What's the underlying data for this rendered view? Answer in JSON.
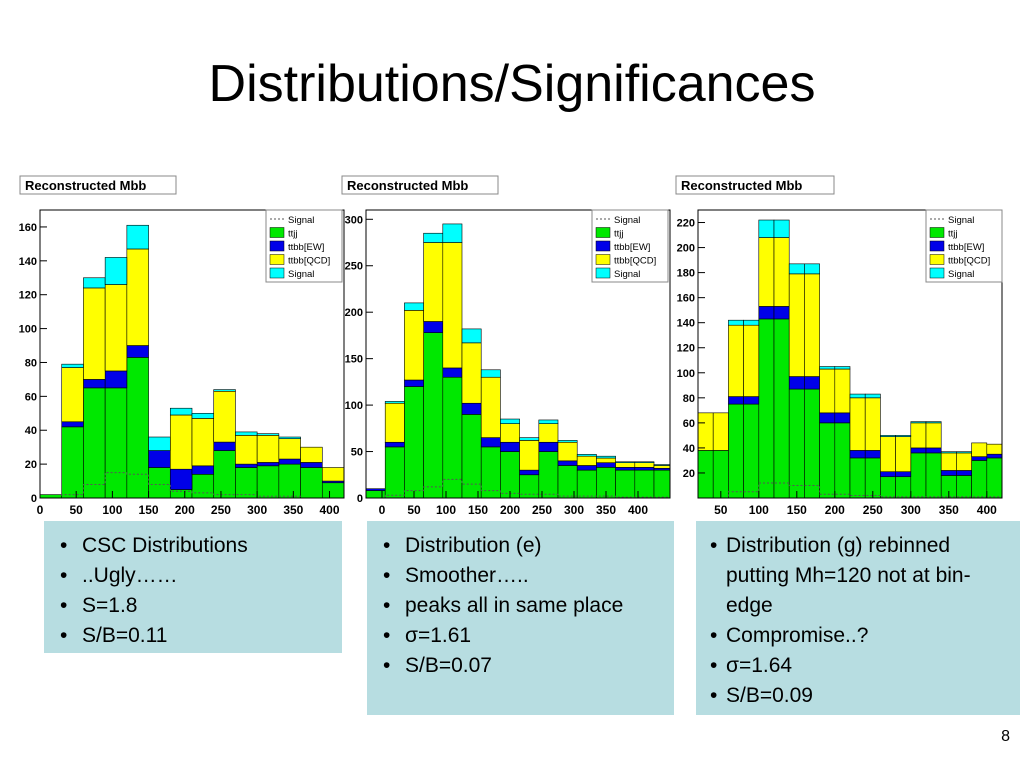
{
  "slide": {
    "title": "Distributions/Significances",
    "page_number": "8"
  },
  "legend_labels": [
    "Signal",
    "ttjj",
    "ttbb[EW]",
    "ttbb[QCD]",
    "Signal"
  ],
  "colors": {
    "ttjj": "#00e800",
    "ttbb_ew": "#0000e8",
    "ttbb_qcd": "#ffff00",
    "signal": "#00ffff",
    "signal_line": "#555555",
    "box": "#b7dde1"
  },
  "chart_data": [
    {
      "type": "bar",
      "stacked": true,
      "title": "Reconstructed Mbb",
      "xlim": [
        0,
        420
      ],
      "ylim": [
        0,
        170
      ],
      "xticks": [
        0,
        50,
        100,
        150,
        200,
        250,
        300,
        350,
        400
      ],
      "yticks": [
        0,
        20,
        40,
        60,
        80,
        100,
        120,
        140,
        160
      ],
      "bins": [
        [
          0,
          30
        ],
        [
          30,
          60
        ],
        [
          60,
          90
        ],
        [
          90,
          120
        ],
        [
          120,
          150
        ],
        [
          150,
          180
        ],
        [
          180,
          210
        ],
        [
          210,
          240
        ],
        [
          240,
          270
        ],
        [
          270,
          300
        ],
        [
          300,
          330
        ],
        [
          330,
          360
        ],
        [
          360,
          390
        ],
        [
          390,
          420
        ]
      ],
      "series": [
        {
          "name": "ttjj",
          "values": [
            2,
            42,
            65,
            65,
            83,
            18,
            5,
            14,
            28,
            18,
            19,
            20,
            18,
            9
          ]
        },
        {
          "name": "ttbb[EW]",
          "values": [
            0,
            3,
            5,
            10,
            7,
            10,
            12,
            5,
            5,
            2,
            2,
            3,
            3,
            1
          ]
        },
        {
          "name": "ttbb[QCD]",
          "values": [
            0,
            32,
            54,
            51,
            57,
            0,
            32,
            28,
            30,
            17,
            16,
            12,
            9,
            8
          ]
        },
        {
          "name": "Signal",
          "values": [
            0,
            2,
            6,
            16,
            14,
            8,
            4,
            3,
            1,
            2,
            1,
            1,
            0,
            0
          ]
        }
      ],
      "signal_line": [
        0,
        2,
        8,
        15,
        14,
        8,
        4,
        3,
        2,
        2,
        1,
        1,
        0,
        0
      ]
    },
    {
      "type": "bar",
      "stacked": true,
      "title": "Reconstructed Mbb",
      "xlim": [
        -25,
        450
      ],
      "ylim": [
        0,
        310
      ],
      "xticks": [
        0,
        50,
        100,
        150,
        200,
        250,
        300,
        350,
        400
      ],
      "yticks": [
        0,
        50,
        100,
        150,
        200,
        250,
        300
      ],
      "bins": [
        [
          -25,
          5
        ],
        [
          5,
          35
        ],
        [
          35,
          65
        ],
        [
          65,
          95
        ],
        [
          95,
          125
        ],
        [
          125,
          155
        ],
        [
          155,
          185
        ],
        [
          185,
          215
        ],
        [
          215,
          245
        ],
        [
          245,
          275
        ],
        [
          275,
          305
        ],
        [
          305,
          335
        ],
        [
          335,
          365
        ],
        [
          365,
          395
        ],
        [
          395,
          425
        ],
        [
          425,
          450
        ]
      ],
      "series": [
        {
          "name": "ttjj",
          "values": [
            8,
            55,
            120,
            178,
            130,
            90,
            55,
            50,
            25,
            50,
            35,
            30,
            33,
            30,
            30,
            30
          ]
        },
        {
          "name": "ttbb[EW]",
          "values": [
            2,
            5,
            7,
            12,
            10,
            12,
            10,
            10,
            5,
            10,
            5,
            5,
            5,
            3,
            3,
            2
          ]
        },
        {
          "name": "ttbb[QCD]",
          "values": [
            0,
            42,
            75,
            85,
            135,
            65,
            65,
            20,
            32,
            20,
            20,
            10,
            5,
            5,
            5,
            3
          ]
        },
        {
          "name": "Signal",
          "values": [
            0,
            2,
            8,
            10,
            20,
            15,
            8,
            5,
            3,
            4,
            2,
            2,
            2,
            1,
            1,
            1
          ]
        }
      ],
      "signal_line": [
        0,
        3,
        8,
        12,
        20,
        15,
        8,
        5,
        4,
        4,
        2,
        2,
        2,
        1,
        1,
        1
      ]
    },
    {
      "type": "bar",
      "stacked": true,
      "title": "Reconstructed Mbb",
      "xlim": [
        20,
        420
      ],
      "ylim": [
        0,
        230
      ],
      "xticks": [
        50,
        100,
        150,
        200,
        250,
        300,
        350,
        400
      ],
      "yticks": [
        20,
        40,
        60,
        80,
        100,
        120,
        140,
        160,
        180,
        200,
        220
      ],
      "bins": [
        [
          20,
          40
        ],
        [
          40,
          60
        ],
        [
          60,
          80
        ],
        [
          80,
          100
        ],
        [
          100,
          120
        ],
        [
          120,
          140
        ],
        [
          140,
          160
        ],
        [
          160,
          180
        ],
        [
          180,
          200
        ],
        [
          200,
          220
        ],
        [
          220,
          240
        ],
        [
          240,
          260
        ],
        [
          260,
          280
        ],
        [
          280,
          300
        ],
        [
          300,
          320
        ],
        [
          320,
          340
        ],
        [
          340,
          360
        ],
        [
          360,
          380
        ],
        [
          380,
          400
        ],
        [
          400,
          420
        ]
      ],
      "series": [
        {
          "name": "ttjj",
          "values": [
            38,
            38,
            75,
            75,
            143,
            143,
            87,
            87,
            60,
            60,
            32,
            32,
            17,
            17,
            36,
            36,
            18,
            18,
            30,
            32
          ]
        },
        {
          "name": "ttbb[EW]",
          "values": [
            0,
            0,
            6,
            6,
            10,
            10,
            10,
            10,
            8,
            8,
            6,
            6,
            4,
            4,
            4,
            4,
            4,
            4,
            3,
            3
          ]
        },
        {
          "name": "ttbb[QCD]",
          "values": [
            30,
            30,
            57,
            57,
            55,
            55,
            82,
            82,
            35,
            35,
            42,
            42,
            28,
            28,
            20,
            20,
            14,
            14,
            11,
            8
          ]
        },
        {
          "name": "Signal",
          "values": [
            0,
            0,
            4,
            4,
            14,
            14,
            8,
            8,
            2,
            2,
            3,
            3,
            1,
            1,
            1,
            1,
            1,
            1,
            0,
            0
          ]
        }
      ],
      "signal_line": [
        0,
        0,
        5,
        5,
        12,
        12,
        10,
        10,
        3,
        3,
        2,
        2,
        1,
        1,
        1,
        1,
        1,
        1,
        1,
        1
      ]
    }
  ],
  "boxes": [
    {
      "items": [
        "CSC Distributions",
        "..Ugly……",
        "S=1.8",
        "S/B=0.11"
      ]
    },
    {
      "items": [
        "Distribution (e)",
        "Smoother…..",
        "peaks all in same place",
        "σ=1.61",
        "S/B=0.07"
      ]
    },
    {
      "items": [
        "Distribution (g) rebinned putting Mh=120 not at bin-edge",
        "Compromise..?",
        "σ=1.64",
        "S/B=0.09"
      ]
    }
  ]
}
